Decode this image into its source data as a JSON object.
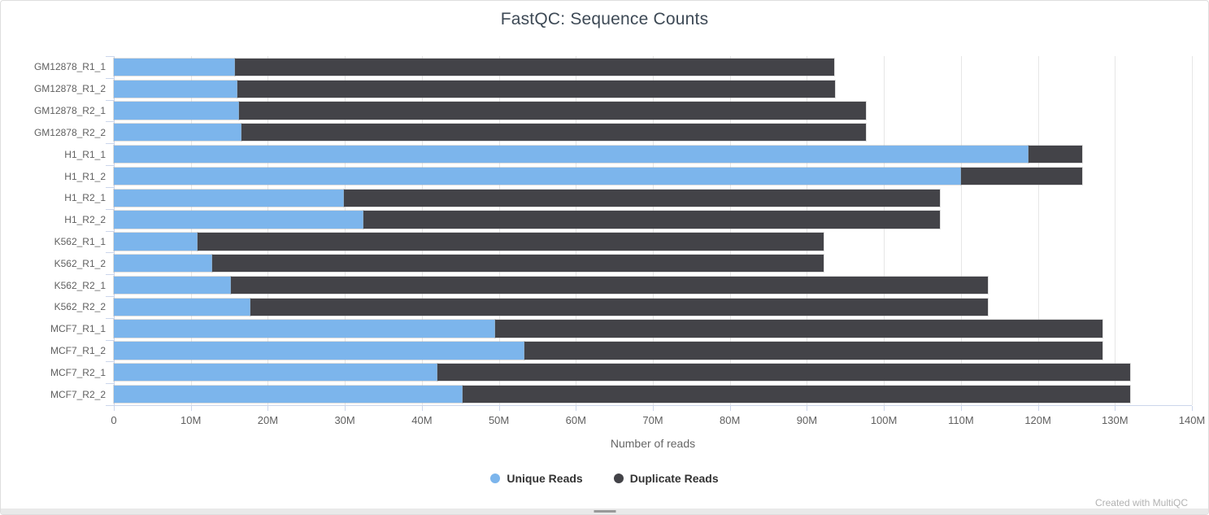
{
  "title": "FastQC: Sequence Counts",
  "x_axis_title": "Number of reads",
  "credit": "Created with MultiQC",
  "legend": [
    {
      "label": "Unique Reads",
      "color": "#7cb5ec"
    },
    {
      "label": "Duplicate Reads",
      "color": "#434348"
    }
  ],
  "chart_data": {
    "type": "bar",
    "orientation": "horizontal",
    "stacked": true,
    "title": "FastQC: Sequence Counts",
    "xlabel": "Number of reads",
    "ylabel": "",
    "xlim": [
      0,
      140000000
    ],
    "grid": true,
    "legend_position": "bottom-center",
    "categories": [
      "GM12878_R1_1",
      "GM12878_R1_2",
      "GM12878_R2_1",
      "GM12878_R2_2",
      "H1_R1_1",
      "H1_R1_2",
      "H1_R2_1",
      "H1_R2_2",
      "K562_R1_1",
      "K562_R1_2",
      "K562_R2_1",
      "K562_R2_2",
      "MCF7_R1_1",
      "MCF7_R1_2",
      "MCF7_R2_1",
      "MCF7_R2_2"
    ],
    "series": [
      {
        "name": "Unique Reads",
        "color": "#7cb5ec",
        "values": [
          15700000,
          16000000,
          16300000,
          16600000,
          118800000,
          110000000,
          29900000,
          32400000,
          10900000,
          12800000,
          15200000,
          17700000,
          49500000,
          53300000,
          42000000,
          45300000
        ]
      },
      {
        "name": "Duplicate Reads",
        "color": "#434348",
        "values": [
          77900000,
          77600000,
          81400000,
          81100000,
          7000000,
          15800000,
          77400000,
          74900000,
          81300000,
          79400000,
          98300000,
          95800000,
          78900000,
          75100000,
          90000000,
          86700000
        ]
      }
    ],
    "xticks": [
      "0",
      "10M",
      "20M",
      "30M",
      "40M",
      "50M",
      "60M",
      "70M",
      "80M",
      "90M",
      "100M",
      "110M",
      "120M",
      "130M",
      "140M"
    ],
    "xtick_values": [
      0,
      10000000,
      20000000,
      30000000,
      40000000,
      50000000,
      60000000,
      70000000,
      80000000,
      90000000,
      100000000,
      110000000,
      120000000,
      130000000,
      140000000
    ]
  }
}
